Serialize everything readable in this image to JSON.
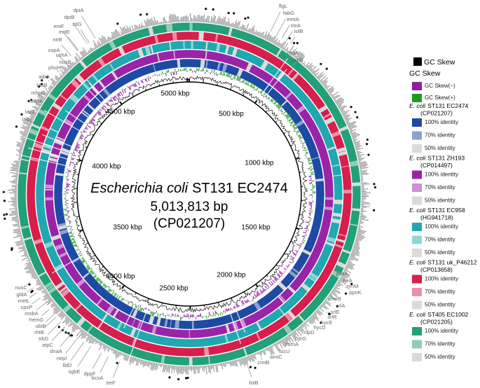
{
  "center": {
    "species": "Escherichia coli",
    "strain": "ST131 EC2474",
    "length": "5,013,813 bp",
    "accession": "(CP021207)"
  },
  "scale_labels": [
    "5000 kbp",
    "500 kbp",
    "1000 kbp",
    "1500 kbp",
    "2000 kbp",
    "2500 kbp",
    "3000 kbp",
    "3500 kbp",
    "4000 kbp",
    "4500 kbp"
  ],
  "genes": [
    "flgL",
    "fabG",
    "emtA",
    "treA",
    "tolB",
    "chaB",
    "oppB",
    "dpiA",
    "dpiB",
    "citG",
    "entF",
    "entE",
    "nirB",
    "copA",
    "ushA",
    "nusB",
    "phoH",
    "adrA",
    "tauB",
    "mhpB",
    "mhpA",
    "lacZ",
    "lacY",
    "nusC",
    "gldA",
    "metL",
    "cpxP",
    "mobA",
    "hemG",
    "ubiB",
    "rhtB",
    "trkD",
    "atpC",
    "dnaA",
    "nepI",
    "lldD",
    "sgbE",
    "dppF",
    "bcsA",
    "treF",
    "pssA",
    "tyrA",
    "rimM",
    "ppnK",
    "emrB",
    "srlA",
    "srlE",
    "srlR",
    "hycE",
    "hycD",
    "nlpD",
    "pyrG",
    "rumA",
    "fucU",
    "amiC",
    "cmtB",
    "folB"
  ],
  "legend": {
    "gc_content": "GC Skew",
    "heading": "GC Skew",
    "skew_items": [
      {
        "label": "GC Skew(−)",
        "color": "#8e1f9c"
      },
      {
        "label": "GC Skew(+)",
        "color": "#1f9a1f"
      }
    ],
    "groups": [
      {
        "species": "E. coli",
        "strain": "ST131 EC2474",
        "accession": "(CP021207)",
        "items": [
          "100% identity",
          "70% identity",
          "50% identity"
        ],
        "colors": [
          "#1e4aa6",
          "#8ea0d0",
          "#dadada"
        ]
      },
      {
        "species": "E. coli",
        "strain": "ST131 ZH193",
        "accession": "(CP014497)",
        "items": [
          "100% identity",
          "70% identity",
          "50% identity"
        ],
        "colors": [
          "#9a24a8",
          "#cc90d4",
          "#dadada"
        ]
      },
      {
        "species": "E. coli",
        "strain": "ST131 EC958",
        "accession": "(HG941718)",
        "items": [
          "100% identity",
          "70% identity",
          "50% identity"
        ],
        "colors": [
          "#20a8b0",
          "#90d4d6",
          "#dadada"
        ]
      },
      {
        "species": "E. coli",
        "strain": "ST131 uk_P46212",
        "accession": "(CP013658)",
        "items": [
          "100% identity",
          "70% identity",
          "50% identity"
        ],
        "colors": [
          "#d81e4c",
          "#eb90a6",
          "#dadada"
        ]
      },
      {
        "species": "E. coli",
        "strain": "ST405 EC1002",
        "accession": "(CP021205)",
        "items": [
          "100% identity",
          "70% identity",
          "50% identity"
        ],
        "colors": [
          "#22a07a",
          "#90ccb6",
          "#dadada"
        ]
      }
    ]
  }
}
